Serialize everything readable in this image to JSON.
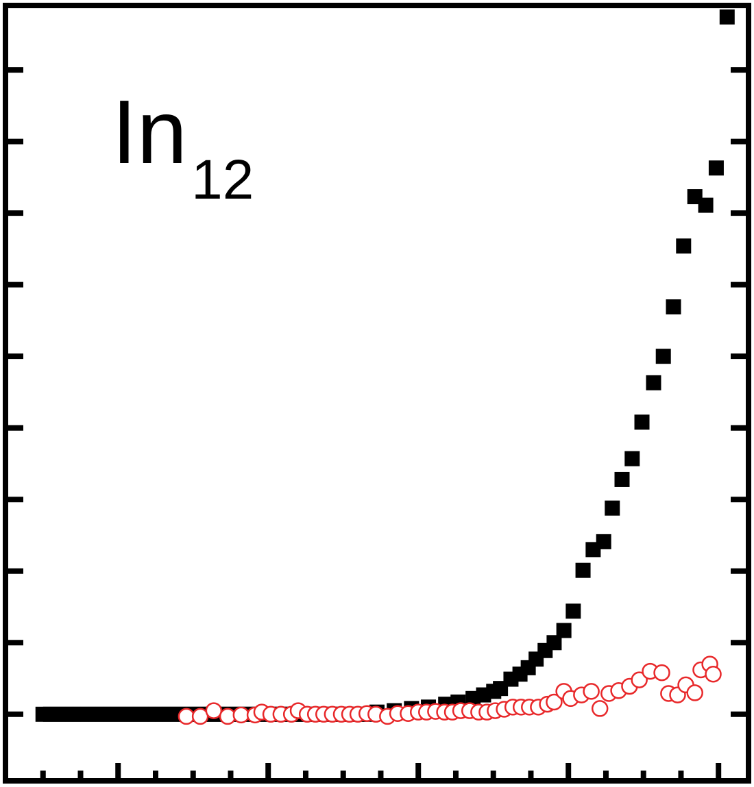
{
  "chart_data": {
    "type": "scatter",
    "annotation": {
      "text": "In",
      "subscript": "12"
    },
    "xlim": [
      -1.0,
      18.8
    ],
    "ylim": [
      -0.93,
      9.9
    ],
    "xticks": [
      2,
      6,
      10,
      14,
      18
    ],
    "x_minor_ticks": [
      0,
      1,
      3,
      4,
      5,
      7,
      8,
      9,
      11,
      12,
      13,
      15,
      16,
      17
    ],
    "yticks": [
      0,
      1,
      2,
      3,
      4,
      5,
      6,
      7,
      8,
      9
    ],
    "series": [
      {
        "color": "#000000",
        "marker": "square",
        "x": [
          0,
          0.2,
          0.4,
          0.6,
          0.8,
          1,
          1.2,
          1.4,
          1.6,
          1.8,
          2,
          2.2,
          2.4,
          2.6,
          2.8,
          3,
          3.2,
          3.4,
          3.6,
          3.8,
          4,
          4.2,
          4.4,
          4.6,
          4.8,
          5,
          5.2,
          5.4,
          5.6,
          5.8,
          6,
          6.2,
          6.4,
          6.6,
          6.8,
          7,
          7.2,
          7.4,
          7.6,
          7.8,
          8,
          8.2,
          8.4,
          8.6,
          8.9,
          9.36,
          9.82,
          10.27,
          10.73,
          11.06,
          11.46,
          11.74,
          12.01,
          12.19,
          12.47,
          12.71,
          12.93,
          13.14,
          13.38,
          13.62,
          13.88,
          14.13,
          14.39,
          14.66,
          14.94,
          15.17,
          15.43,
          15.7,
          15.96,
          16.27,
          16.53,
          16.8,
          17.07,
          17.37,
          17.66,
          17.94,
          18.23
        ],
        "values": [
          0,
          0,
          0,
          0,
          0,
          0,
          0,
          0,
          0,
          0,
          0,
          0,
          0,
          0,
          0,
          0,
          0,
          0,
          0,
          0,
          0,
          0,
          0,
          0,
          0,
          0,
          0,
          0,
          0,
          0,
          0,
          0,
          0,
          0,
          0,
          0,
          0,
          0,
          0,
          0,
          0,
          0,
          0,
          0,
          0.03,
          0.05,
          0.08,
          0.1,
          0.14,
          0.17,
          0.22,
          0.27,
          0.32,
          0.36,
          0.49,
          0.56,
          0.65,
          0.77,
          0.89,
          1.0,
          1.17,
          1.44,
          2.01,
          2.3,
          2.41,
          2.88,
          3.28,
          3.57,
          4.08,
          4.63,
          5.0,
          5.69,
          6.54,
          7.23,
          7.11,
          7.63,
          9.74
        ]
      },
      {
        "color": "#e8282a",
        "marker": "open-circle",
        "x": [
          3.82,
          4.19,
          4.55,
          4.92,
          5.28,
          5.65,
          5.83,
          6.07,
          6.34,
          6.62,
          6.8,
          7.04,
          7.26,
          7.48,
          7.71,
          7.95,
          8.17,
          8.39,
          8.63,
          8.87,
          9.18,
          9.45,
          9.73,
          10.0,
          10.22,
          10.46,
          10.7,
          10.91,
          11.13,
          11.37,
          11.61,
          11.83,
          12.05,
          12.29,
          12.52,
          12.74,
          12.96,
          13.2,
          13.44,
          13.62,
          13.88,
          14.06,
          14.35,
          14.61,
          14.84,
          15.08,
          15.34,
          15.63,
          15.89,
          16.18,
          16.49,
          16.67,
          16.91,
          17.13,
          17.37,
          17.53,
          17.77,
          17.86
        ],
        "values": [
          -0.03,
          -0.03,
          0.05,
          -0.03,
          -0.01,
          -0.01,
          0.03,
          0,
          0,
          0,
          0.05,
          0,
          0,
          0,
          0,
          0,
          0,
          0,
          0.01,
          0,
          -0.03,
          0.01,
          0.01,
          0.03,
          0.03,
          0.04,
          0.03,
          0.03,
          0.05,
          0.05,
          0.03,
          0.03,
          0.05,
          0.07,
          0.1,
          0.1,
          0.1,
          0.1,
          0.14,
          0.17,
          0.32,
          0.22,
          0.27,
          0.32,
          0.08,
          0.29,
          0.33,
          0.39,
          0.48,
          0.6,
          0.58,
          0.29,
          0.27,
          0.41,
          0.3,
          0.62,
          0.7,
          0.56
        ]
      }
    ]
  }
}
